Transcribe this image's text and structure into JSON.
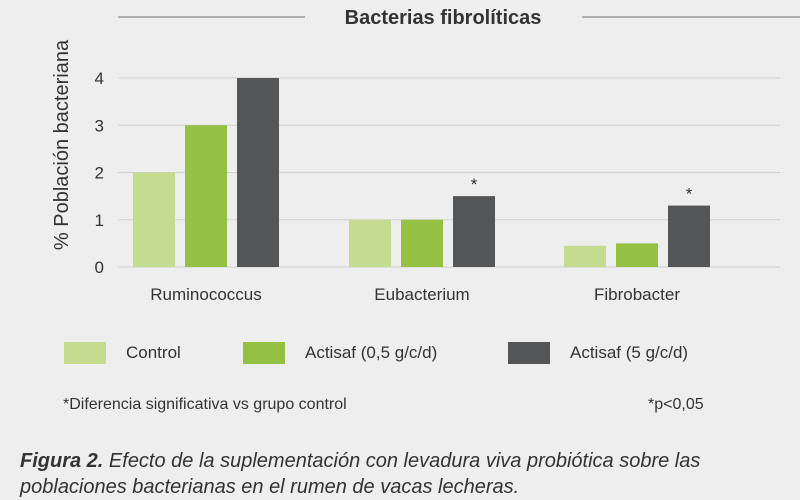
{
  "chart_data": {
    "type": "bar",
    "title": "Bacterias fibrolíticas",
    "ylabel": "% Población bacteriana",
    "xlabel": "",
    "categories": [
      "Ruminococcus",
      "Eubacterium",
      "Fibrobacter"
    ],
    "series": [
      {
        "name": "Control",
        "color": "#c5dc90",
        "values": [
          2.0,
          1.0,
          0.45
        ]
      },
      {
        "name": "Actisaf (0,5 g/c/d)",
        "color": "#94c043",
        "values": [
          3.0,
          1.0,
          0.5
        ]
      },
      {
        "name": "Actisaf (5 g/c/d)",
        "color": "#555658",
        "values": [
          4.0,
          1.5,
          1.3
        ]
      }
    ],
    "yticks": [
      "0",
      "1",
      "2",
      "3",
      "4"
    ],
    "ylim": [
      0,
      4
    ],
    "grid": true,
    "legend_position": "bottom",
    "annotations": [
      {
        "category": "Eubacterium",
        "series": "Actisaf (5 g/c/d)",
        "text": "*"
      },
      {
        "category": "Fibrobacter",
        "series": "Actisaf (5 g/c/d)",
        "text": "*"
      }
    ]
  },
  "notes": {
    "significance": "*Diferencia significativa vs grupo control",
    "pvalue": "*p<0,05"
  },
  "caption": {
    "label": "Figura 2.",
    "text": " Efecto de la suplementación con levadura viva probiótica sobre las poblaciones bacterianas en el rumen de vacas lecheras."
  }
}
